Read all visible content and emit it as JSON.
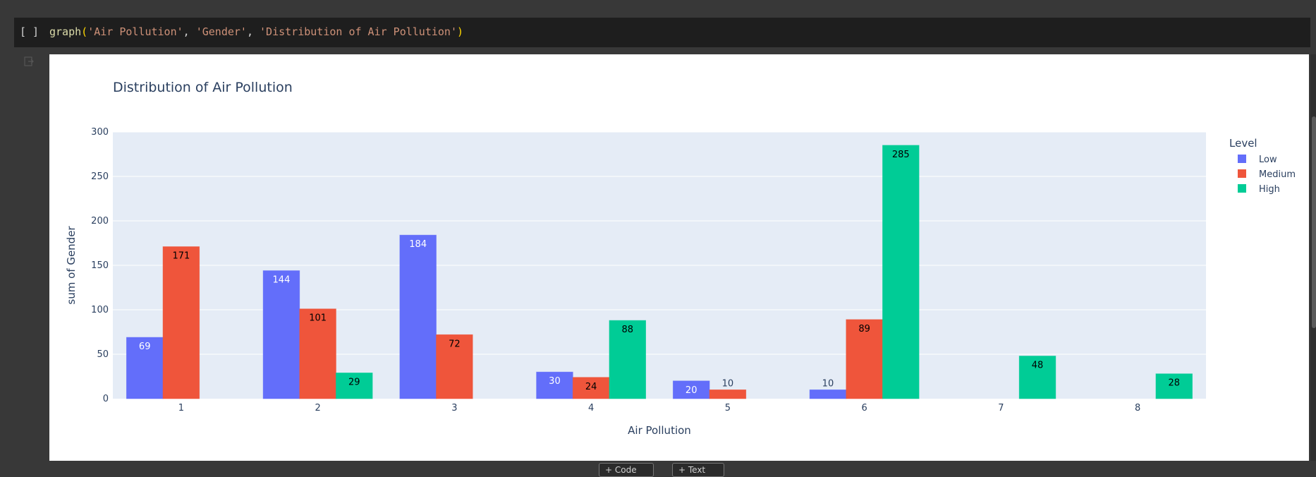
{
  "cell": {
    "run_bracket": "[ ]",
    "code": {
      "fn": "graph",
      "open": "(",
      "arg1": "'Air Pollution'",
      "sep1": ", ",
      "arg2": "'Gender'",
      "sep2": ", ",
      "arg3": "'Distribution of Air Pollution'",
      "close": ")"
    }
  },
  "toolbar": {
    "add_code_label": "+ Code",
    "add_text_label": "+ Text"
  },
  "colors": {
    "Low": "#636efa",
    "Medium": "#ef553b",
    "High": "#00cc96",
    "plot_bg": "#e5ecf6",
    "text": "#2a3f5f"
  },
  "chart_data": {
    "type": "bar",
    "title": "Distribution of Air Pollution",
    "xlabel": "Air Pollution",
    "ylabel": "sum of Gender",
    "categories": [
      "1",
      "2",
      "3",
      "4",
      "5",
      "6",
      "7",
      "8"
    ],
    "ylim": [
      0,
      300
    ],
    "yticks": [
      0,
      50,
      100,
      150,
      200,
      250,
      300
    ],
    "grid": true,
    "legend_title": "Level",
    "legend_position": "top-right",
    "series": [
      {
        "name": "Low",
        "values": [
          69,
          144,
          184,
          30,
          20,
          10,
          null,
          null
        ]
      },
      {
        "name": "Medium",
        "values": [
          171,
          101,
          72,
          24,
          10,
          89,
          null,
          null
        ]
      },
      {
        "name": "High",
        "values": [
          null,
          29,
          null,
          88,
          null,
          285,
          48,
          28
        ]
      }
    ]
  }
}
